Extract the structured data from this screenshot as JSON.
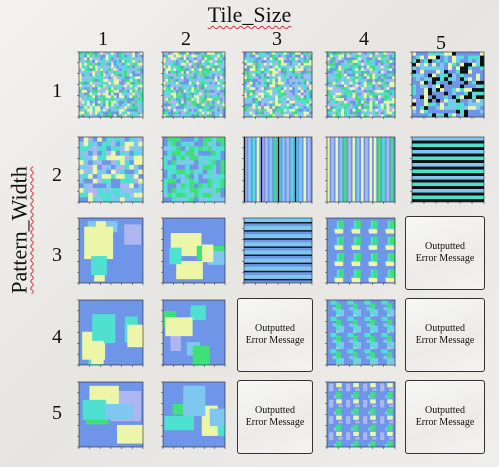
{
  "header": {
    "title": "Tile_Size"
  },
  "side": {
    "label": "Pattern_Width"
  },
  "columns": [
    "1",
    "2",
    "3",
    "4",
    "5"
  ],
  "rows": [
    "1",
    "2",
    "3",
    "4",
    "5"
  ],
  "error": {
    "text": "Outputted Error Message"
  },
  "palette": {
    "blue": "#6f95e8",
    "light_blue": "#7ec8f0",
    "cyan": "#4fe0d0",
    "green": "#3ee07a",
    "yellow": "#ecf5a8",
    "lavender": "#aeb6f0",
    "black": "#111111"
  }
}
